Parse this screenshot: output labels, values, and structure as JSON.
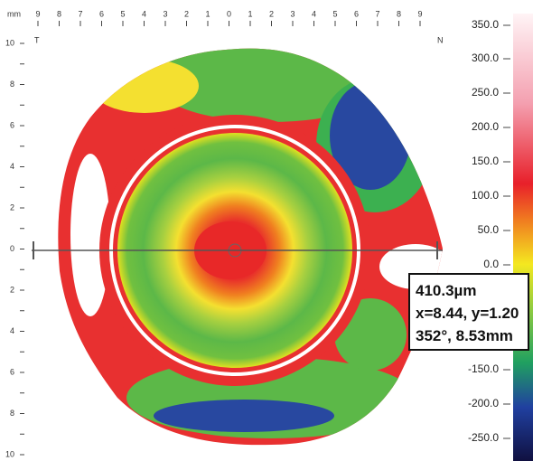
{
  "top_axis": {
    "unit": "mm",
    "labels": [
      "9",
      "8",
      "7",
      "6",
      "5",
      "4",
      "3",
      "2",
      "1",
      "0",
      "1",
      "2",
      "3",
      "4",
      "5",
      "6",
      "7",
      "8",
      "9"
    ],
    "left_side": "T",
    "right_side": "N"
  },
  "left_axis": {
    "labels": [
      "10",
      "8",
      "6",
      "4",
      "2",
      "0",
      "2",
      "4",
      "6",
      "8",
      "10"
    ]
  },
  "scale": {
    "labels": [
      "350.0",
      "300.0",
      "250.0",
      "200.0",
      "150.0",
      "100.0",
      "50.0",
      "0.0",
      "-150.0",
      "-200.0",
      "-250.0"
    ]
  },
  "tooltip": {
    "lines": [
      "410.3µm",
      "x=8.44, y=1.20",
      "352°, 8.53mm"
    ]
  }
}
